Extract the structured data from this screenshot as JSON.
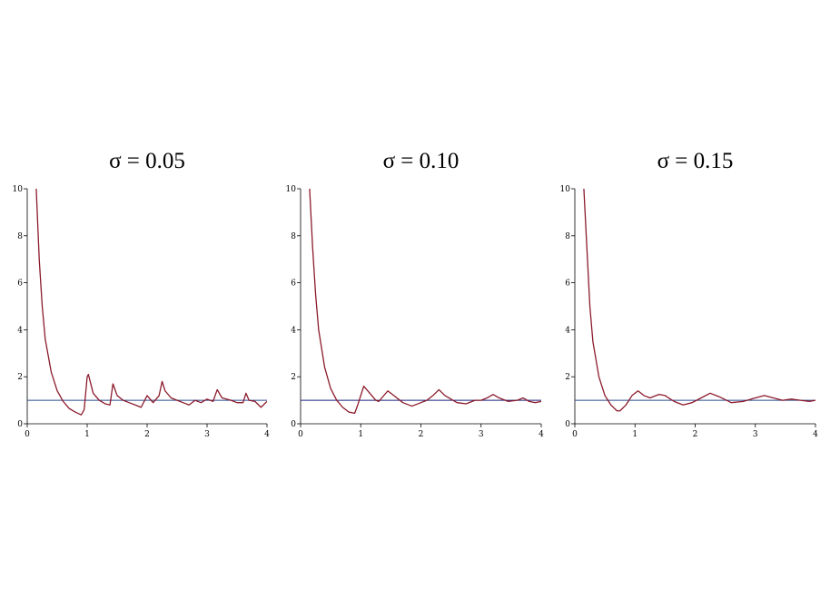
{
  "chart_data": [
    {
      "type": "line",
      "title": "σ = 0.05",
      "x": [
        0.15,
        0.2,
        0.25,
        0.3,
        0.4,
        0.5,
        0.6,
        0.7,
        0.8,
        0.9,
        0.95,
        1.0,
        1.02,
        1.1,
        1.2,
        1.3,
        1.38,
        1.43,
        1.5,
        1.6,
        1.7,
        1.8,
        1.9,
        2.0,
        2.1,
        2.2,
        2.25,
        2.3,
        2.4,
        2.5,
        2.6,
        2.7,
        2.8,
        2.9,
        3.0,
        3.1,
        3.17,
        3.25,
        3.4,
        3.5,
        3.6,
        3.65,
        3.7,
        3.8,
        3.9,
        4.0
      ],
      "series": [
        {
          "color": "#8b1a2b",
          "values": [
            10,
            7,
            5,
            3.6,
            2.2,
            1.4,
            0.95,
            0.65,
            0.5,
            0.38,
            0.6,
            2.0,
            2.1,
            1.3,
            1.0,
            0.85,
            0.8,
            1.7,
            1.2,
            1.0,
            0.9,
            0.8,
            0.7,
            1.2,
            0.9,
            1.2,
            1.8,
            1.4,
            1.1,
            1.0,
            0.9,
            0.8,
            1.0,
            0.9,
            1.05,
            0.95,
            1.45,
            1.1,
            1.0,
            0.9,
            0.9,
            1.3,
            1.0,
            0.95,
            0.7,
            0.95
          ]
        }
      ],
      "hline": {
        "value": 1,
        "color": "#2b4a8f"
      },
      "xlim": [
        0,
        4
      ],
      "ylim": [
        0,
        10
      ],
      "xticks": [
        0,
        1,
        2,
        3,
        4
      ],
      "yticks": [
        0,
        2,
        4,
        6,
        8,
        10
      ]
    },
    {
      "type": "line",
      "title": "σ = 0.10",
      "x": [
        0.15,
        0.2,
        0.25,
        0.3,
        0.4,
        0.5,
        0.6,
        0.7,
        0.8,
        0.9,
        0.95,
        1.05,
        1.15,
        1.25,
        1.3,
        1.45,
        1.55,
        1.7,
        1.85,
        2.0,
        2.1,
        2.2,
        2.3,
        2.4,
        2.6,
        2.75,
        2.9,
        3.0,
        3.1,
        3.2,
        3.3,
        3.45,
        3.6,
        3.7,
        3.8,
        3.9,
        4.0
      ],
      "series": [
        {
          "color": "#8b1a2b",
          "values": [
            10,
            7.5,
            5.5,
            4,
            2.4,
            1.5,
            1.0,
            0.7,
            0.5,
            0.45,
            0.8,
            1.6,
            1.3,
            1.0,
            0.95,
            1.4,
            1.2,
            0.9,
            0.75,
            0.9,
            1.0,
            1.2,
            1.45,
            1.2,
            0.9,
            0.85,
            1.0,
            1.0,
            1.1,
            1.25,
            1.1,
            0.95,
            1.0,
            1.1,
            0.95,
            0.9,
            0.95
          ]
        }
      ],
      "hline": {
        "value": 1,
        "color": "#1a237e"
      },
      "xlim": [
        0,
        4
      ],
      "ylim": [
        0,
        10
      ],
      "xticks": [
        0,
        1,
        2,
        3,
        4
      ],
      "yticks": [
        0,
        2,
        4,
        6,
        8,
        10
      ]
    },
    {
      "type": "line",
      "title": "σ = 0.15",
      "x": [
        0.15,
        0.2,
        0.25,
        0.3,
        0.4,
        0.5,
        0.6,
        0.7,
        0.75,
        0.85,
        0.95,
        1.05,
        1.15,
        1.25,
        1.4,
        1.5,
        1.65,
        1.8,
        1.95,
        2.1,
        2.25,
        2.4,
        2.6,
        2.8,
        3.0,
        3.15,
        3.3,
        3.45,
        3.6,
        3.75,
        3.9,
        4.0
      ],
      "series": [
        {
          "color": "#8b1a2b",
          "values": [
            10,
            7.5,
            5,
            3.5,
            2.0,
            1.2,
            0.8,
            0.55,
            0.55,
            0.8,
            1.2,
            1.4,
            1.2,
            1.1,
            1.25,
            1.2,
            0.95,
            0.8,
            0.9,
            1.1,
            1.3,
            1.15,
            0.9,
            0.95,
            1.1,
            1.2,
            1.1,
            1.0,
            1.05,
            1.0,
            0.95,
            1.0
          ]
        }
      ],
      "hline": {
        "value": 1,
        "color": "#2b4a8f"
      },
      "xlim": [
        0,
        4
      ],
      "ylim": [
        0,
        10
      ],
      "xticks": [
        0,
        1,
        2,
        3,
        4
      ],
      "yticks": [
        0,
        2,
        4,
        6,
        8,
        10
      ]
    }
  ]
}
